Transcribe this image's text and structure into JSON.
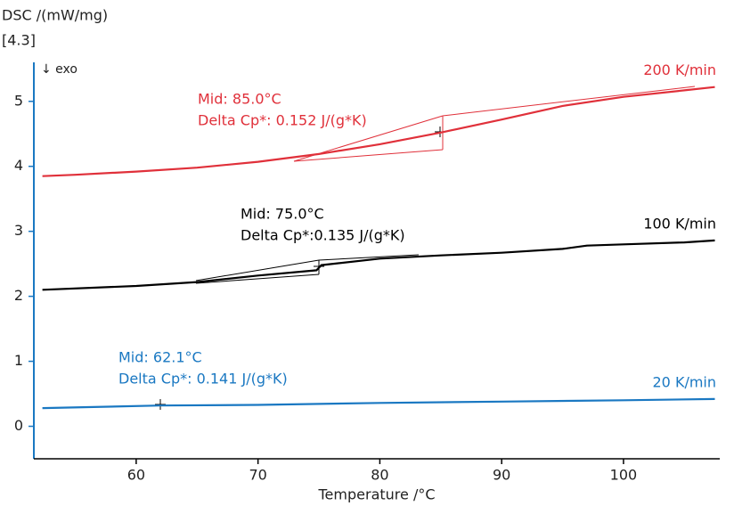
{
  "chart_data": {
    "type": "line",
    "y_label": "DSC /(mW/mg)",
    "axis_note": "[4.3]",
    "exo_label": "↓ exo",
    "x_label": "Temperature /°C",
    "xlim": [
      51.6,
      107.9
    ],
    "xticks": [
      60,
      70,
      80,
      90,
      100
    ],
    "ylim": [
      -0.5,
      5.6
    ],
    "yticks": [
      0,
      1,
      2,
      3,
      4,
      5
    ],
    "series": [
      {
        "name": "200 K/min",
        "color": "#e0303a",
        "x": [
          52.3,
          55,
          60,
          65,
          70,
          75,
          80,
          85,
          90,
          95,
          100,
          105,
          107.5
        ],
        "values": [
          3.85,
          3.87,
          3.92,
          3.98,
          4.07,
          4.19,
          4.34,
          4.52,
          4.72,
          4.93,
          5.07,
          5.17,
          5.22
        ],
        "annotation": [
          "Mid: 85.0°C",
          "Delta Cp*: 0.152 J/(g*K)"
        ]
      },
      {
        "name": "100 K/min",
        "color": "#000000",
        "x": [
          52.3,
          60,
          65,
          70,
          74.8,
          75.2,
          80,
          85,
          90,
          95,
          97,
          100,
          105,
          107.5
        ],
        "values": [
          2.1,
          2.16,
          2.22,
          2.32,
          2.4,
          2.48,
          2.58,
          2.63,
          2.67,
          2.73,
          2.78,
          2.8,
          2.83,
          2.86
        ],
        "annotation": [
          "Mid: 75.0°C",
          "Delta Cp*:0.135 J/(g*K)"
        ]
      },
      {
        "name": "20 K/min",
        "color": "#1a78c2",
        "x": [
          52.3,
          62,
          70,
          80,
          90,
          100,
          107.5
        ],
        "values": [
          0.28,
          0.32,
          0.33,
          0.36,
          0.38,
          0.4,
          0.42
        ],
        "annotation": [
          "Mid: 62.1°C",
          "Delta Cp*: 0.141 J/(g*K)"
        ]
      }
    ]
  }
}
